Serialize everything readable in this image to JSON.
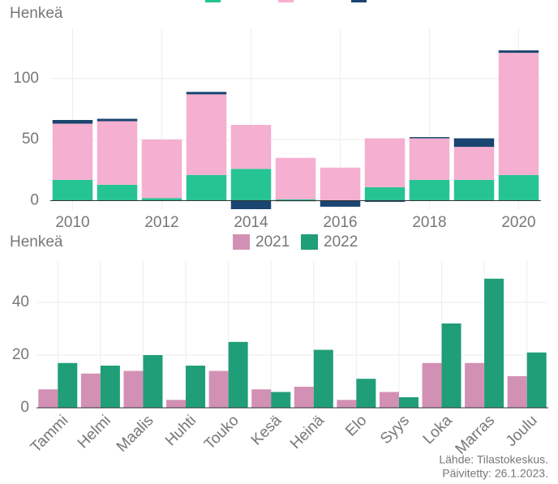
{
  "chart_data": [
    {
      "type": "bar",
      "stacked": true,
      "y_label": "Henkeä",
      "x": [
        2010,
        2011,
        2012,
        2013,
        2014,
        2015,
        2016,
        2017,
        2018,
        2019,
        2020
      ],
      "xlim": [
        2009.5,
        2020.5
      ],
      "xticks": [
        2010,
        2012,
        2014,
        2016,
        2018,
        2020
      ],
      "ylim": [
        -7,
        141
      ],
      "yticks": [
        0,
        50,
        100
      ],
      "grid": true,
      "series": [
        {
          "color": "#26c493",
          "values": [
            17,
            13,
            2,
            21,
            26,
            1,
            0,
            11,
            17,
            17,
            21
          ]
        },
        {
          "color": "#f5afd0",
          "values": [
            46,
            52,
            48,
            66,
            36,
            34,
            27,
            40,
            34,
            27,
            100
          ]
        },
        {
          "color": "#1a4570",
          "values": [
            3,
            2,
            0,
            2,
            -7,
            -0.5,
            -5,
            -1,
            1,
            7,
            2
          ]
        }
      ]
    },
    {
      "type": "bar",
      "y_label": "Henkeä",
      "categories": [
        "Tammi",
        "Helmi",
        "Maalis",
        "Huhti",
        "Touko",
        "Kesä",
        "Heinä",
        "Elo",
        "Syys",
        "Loka",
        "Marras",
        "Joulu"
      ],
      "ylim": [
        0,
        56
      ],
      "yticks": [
        0,
        20,
        40
      ],
      "grid": true,
      "series": [
        {
          "name": "2021",
          "color": "#d291b4",
          "values": [
            7,
            13,
            14,
            3,
            14,
            7,
            8,
            3,
            6,
            17,
            17,
            12
          ]
        },
        {
          "name": "2022",
          "color": "#1f9e78",
          "values": [
            17,
            16,
            20,
            16,
            25,
            6,
            22,
            11,
            4,
            32,
            49,
            21
          ]
        }
      ]
    }
  ],
  "source": [
    "Lähde: Tilastokeskus.",
    "Päivitetty: 26.1.2023."
  ]
}
